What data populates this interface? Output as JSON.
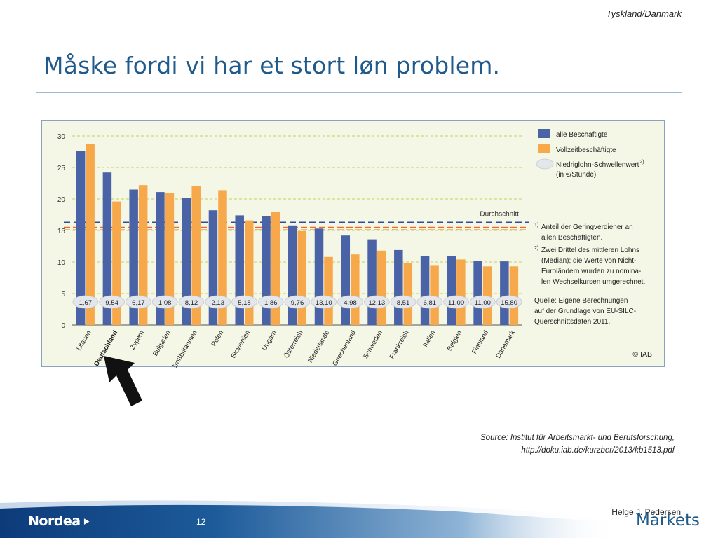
{
  "header": {
    "top_label": "Tyskland/Danmark",
    "title": "Måske fordi vi har et stort løn problem."
  },
  "source": {
    "line1": "Source: Institut für Arbeitsmarkt- und Berufsforschung,",
    "line2": "http://doku.iab.de/kurzber/2013/kb1513.pdf"
  },
  "footer": {
    "author": "Helge J. Pedersen",
    "page": "12",
    "brand": "Nordea",
    "division": "Markets"
  },
  "colors": {
    "blue": "#4a63a6",
    "orange": "#f7a84a",
    "avg_line": "#2f4e97",
    "threshold_line": "#e96a2a",
    "title": "#1f5a8c"
  },
  "chart_data": {
    "type": "bar",
    "categories": [
      "Litauen",
      "Deutschland",
      "Zypern",
      "Bulgarien",
      "Großbritannien",
      "Polen",
      "Slowenien",
      "Ungarn",
      "Österreich",
      "Niederlande",
      "Griechenland",
      "Schweden",
      "Frankreich",
      "Italien",
      "Belgien",
      "Finnland",
      "Dänemark"
    ],
    "highlight_category": "Deutschland",
    "series": [
      {
        "name": "alle Beschäftigte",
        "color": "#4a63a6",
        "values": [
          27.6,
          24.2,
          21.5,
          21.1,
          20.2,
          18.2,
          17.4,
          17.3,
          15.8,
          15.3,
          14.2,
          13.6,
          11.9,
          11.0,
          10.9,
          10.2,
          10.1
        ]
      },
      {
        "name": "Vollzeitbeschäftigte",
        "color": "#f7a84a",
        "values": [
          28.7,
          19.6,
          22.2,
          20.9,
          22.1,
          21.4,
          16.6,
          18.0,
          14.9,
          10.8,
          11.2,
          11.8,
          9.8,
          9.4,
          10.4,
          9.3,
          9.3
        ]
      }
    ],
    "threshold_values": [
      "1,67",
      "9,54",
      "6,17",
      "1,08",
      "8,12",
      "2,13",
      "5,18",
      "1,86",
      "9,76",
      "13,10",
      "4,98",
      "12,13",
      "8,51",
      "6,81",
      "11,00",
      "11,00",
      "15,80"
    ],
    "threshold_label": "Niedriglohn-Schwellenwert",
    "threshold_sup": "2)",
    "threshold_unit": "(in €/Stunde)",
    "average_label": "Durchschnitt",
    "average_all": 16.3,
    "average_fulltime": 15.5,
    "yticks": [
      "0",
      "5",
      "10",
      "15",
      "20",
      "25",
      "30"
    ],
    "ylim": [
      0,
      30
    ],
    "notes": [
      {
        "sup": "1)",
        "lines": [
          "Anteil der Geringverdiener an",
          "allen Beschäftigten."
        ]
      },
      {
        "sup": "2)",
        "lines": [
          "Zwei Drittel des mittleren Lohns",
          "(Median); die Werte von Nicht-",
          "Euroländern wurden zu nomina-",
          "len Wechselkursen umgerechnet."
        ]
      }
    ],
    "source_lines": [
      "Quelle: Eigene Berechnungen",
      "auf der Grundlage von EU-SILC-",
      "Querschnittsdaten 2011."
    ],
    "copyright": "© IAB",
    "grid": true,
    "legend_position": "right"
  }
}
